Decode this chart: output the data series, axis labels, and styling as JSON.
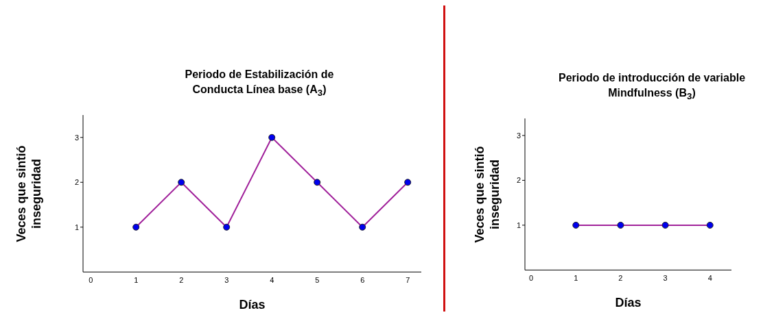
{
  "chart_data": [
    {
      "type": "line",
      "title": "Periodo de Estabilización de\nConducta Línea base (A$_{3}$)",
      "xlabel": "Días",
      "ylabel": "Veces que sintió\ninseguridad",
      "x": [
        1,
        2,
        3,
        4,
        5,
        6,
        7
      ],
      "xlim": [
        -0.17,
        7.3
      ],
      "xticks": [
        0,
        1,
        2,
        3,
        4,
        5,
        6,
        7
      ],
      "ylim": [
        0,
        3.5
      ],
      "yticks": [
        1,
        2,
        3
      ],
      "grid": false,
      "legend": false,
      "marker": "circle",
      "line_style": "solid",
      "series": [
        {
          "color": "#a0209a",
          "colors": [
            "#0000ee",
            "#0000ee",
            "#0000ee",
            "#0000ee",
            "#0000ee",
            "#0000ee",
            "#0000ee"
          ],
          "values": [
            1,
            2,
            1,
            3,
            2,
            1,
            2
          ]
        }
      ]
    },
    {
      "type": "line",
      "title": "Periodo de introducción de variable\nMindfulness (B$_{3}$)",
      "xlabel": "Días",
      "ylabel": "Veces que sintió\ninseguridad",
      "x": [
        1,
        2,
        3,
        4
      ],
      "xlim": [
        -0.14,
        4.48
      ],
      "xticks": [
        0,
        1,
        2,
        3,
        4
      ],
      "ylim": [
        0,
        3.38
      ],
      "yticks": [
        1,
        2,
        3
      ],
      "grid": false,
      "legend": false,
      "marker": "circle",
      "line_style": "solid",
      "series": [
        {
          "color": "#a0209a",
          "colors": [
            "#0000ee",
            "#0000ee",
            "#0000ee",
            "#0000ee"
          ],
          "values": [
            1,
            1,
            1,
            1
          ]
        }
      ]
    }
  ]
}
